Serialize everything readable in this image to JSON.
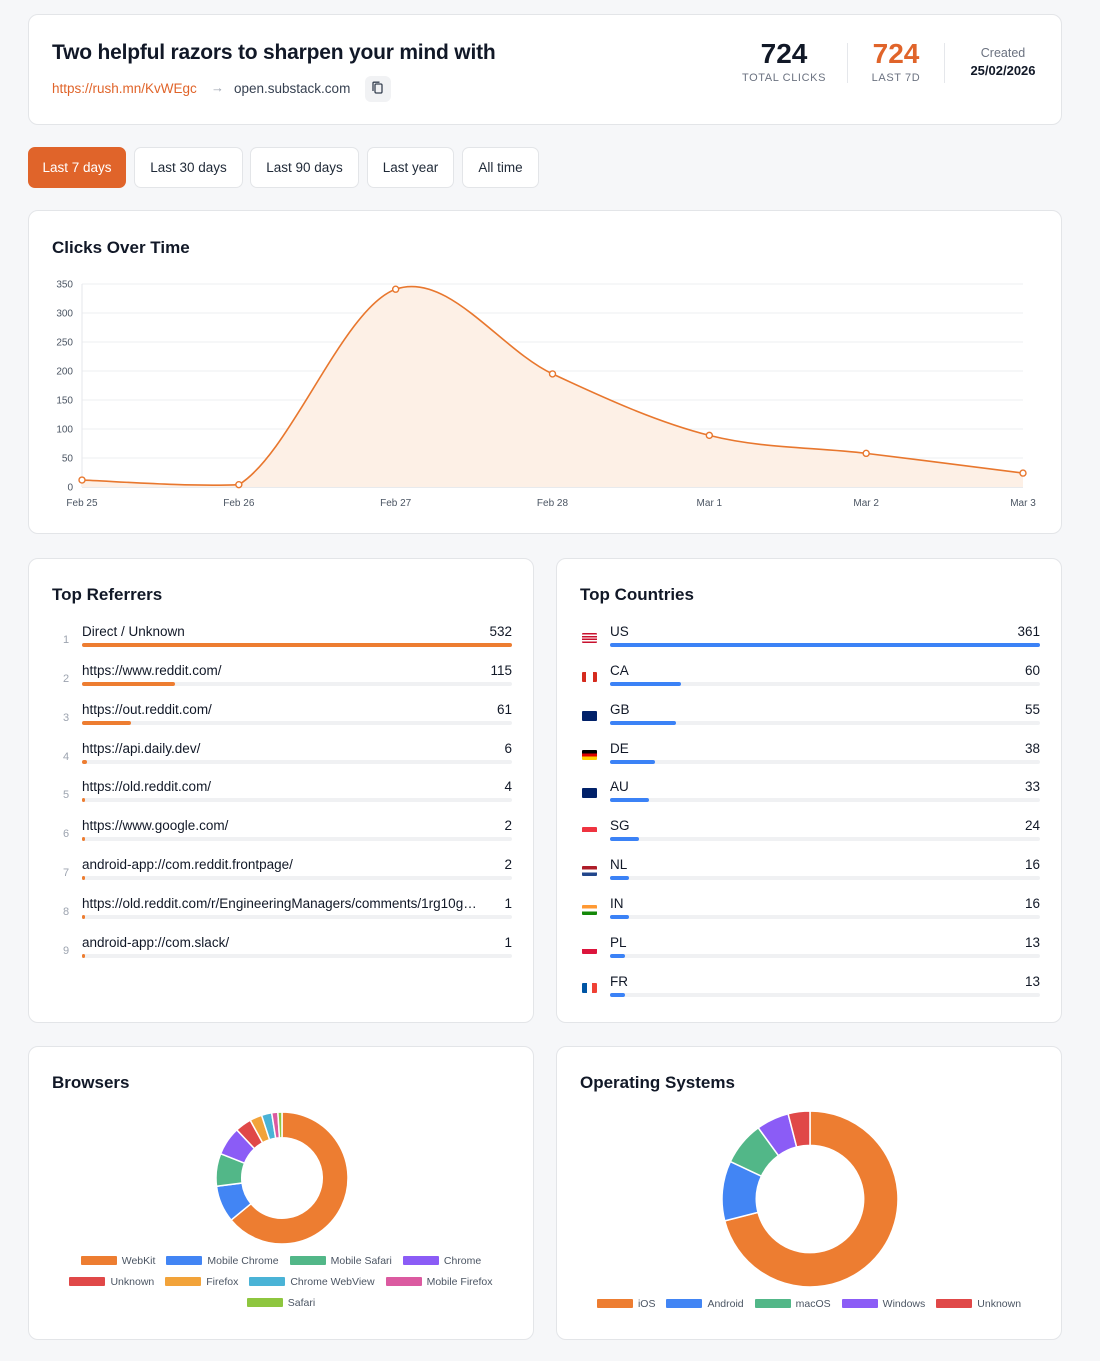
{
  "header": {
    "title": "Two helpful razors to sharpen your mind with",
    "short_url": "https://rush.mn/KvWEgc",
    "destination": "open.substack.com",
    "total_clicks": "724",
    "total_clicks_label": "TOTAL CLICKS",
    "last7d": "724",
    "last7d_label": "LAST 7D",
    "created_label": "Created",
    "created_date": "25/02/2026"
  },
  "ranges": [
    {
      "label": "Last 7 days",
      "active": true
    },
    {
      "label": "Last 30 days",
      "active": false
    },
    {
      "label": "Last 90 days",
      "active": false
    },
    {
      "label": "Last year",
      "active": false
    },
    {
      "label": "All time",
      "active": false
    }
  ],
  "colors": {
    "accent": "#e0642a",
    "line": "#e8772e",
    "area": "#fdf0e6",
    "bar_ref": "#ed7d31",
    "bar_country": "#3b82f6"
  },
  "chart_data": {
    "type": "area",
    "title": "Clicks Over Time",
    "categories": [
      "Feb 25",
      "Feb 26",
      "Feb 27",
      "Feb 28",
      "Mar 1",
      "Mar 2",
      "Mar 3"
    ],
    "values": [
      12,
      4,
      341,
      195,
      89,
      58,
      24
    ],
    "ylim": [
      0,
      350
    ],
    "yticks": [
      0,
      50,
      100,
      150,
      200,
      250,
      300,
      350
    ],
    "grid": true
  },
  "referrers": {
    "title": "Top Referrers",
    "items": [
      {
        "rank": "1",
        "name": "Direct / Unknown",
        "count": 532
      },
      {
        "rank": "2",
        "name": "https://www.reddit.com/",
        "count": 115
      },
      {
        "rank": "3",
        "name": "https://out.reddit.com/",
        "count": 61
      },
      {
        "rank": "4",
        "name": "https://api.daily.dev/",
        "count": 6
      },
      {
        "rank": "5",
        "name": "https://old.reddit.com/",
        "count": 4
      },
      {
        "rank": "6",
        "name": "https://www.google.com/",
        "count": 2
      },
      {
        "rank": "7",
        "name": "android-app://com.reddit.frontpage/",
        "count": 2
      },
      {
        "rank": "8",
        "name": "https://old.reddit.com/r/EngineeringManagers/comments/1rg10g2/o...",
        "count": 1
      },
      {
        "rank": "9",
        "name": "android-app://com.slack/",
        "count": 1
      }
    ]
  },
  "countries": {
    "title": "Top Countries",
    "items": [
      {
        "code": "US",
        "count": 361,
        "flag": "us-flag-icon"
      },
      {
        "code": "CA",
        "count": 60,
        "flag": "ca-flag-icon"
      },
      {
        "code": "GB",
        "count": 55,
        "flag": "gb-flag-icon"
      },
      {
        "code": "DE",
        "count": 38,
        "flag": "de-flag-icon"
      },
      {
        "code": "AU",
        "count": 33,
        "flag": "au-flag-icon"
      },
      {
        "code": "SG",
        "count": 24,
        "flag": "sg-flag-icon"
      },
      {
        "code": "NL",
        "count": 16,
        "flag": "nl-flag-icon"
      },
      {
        "code": "IN",
        "count": 16,
        "flag": "in-flag-icon"
      },
      {
        "code": "PL",
        "count": 13,
        "flag": "pl-flag-icon"
      },
      {
        "code": "FR",
        "count": 13,
        "flag": "fr-flag-icon"
      }
    ]
  },
  "browsers": {
    "title": "Browsers",
    "slices": [
      {
        "label": "WebKit",
        "value": 64,
        "color": "#ed7d31"
      },
      {
        "label": "Mobile Chrome",
        "value": 9,
        "color": "#4285f4"
      },
      {
        "label": "Mobile Safari",
        "value": 8,
        "color": "#52b788"
      },
      {
        "label": "Chrome",
        "value": 7,
        "color": "#8b5cf6"
      },
      {
        "label": "Unknown",
        "value": 4,
        "color": "#e04848"
      },
      {
        "label": "Firefox",
        "value": 3,
        "color": "#f2a33a"
      },
      {
        "label": "Chrome WebView",
        "value": 2.5,
        "color": "#4ab3d6"
      },
      {
        "label": "Mobile Firefox",
        "value": 1.5,
        "color": "#db5aa0"
      },
      {
        "label": "Safari",
        "value": 1,
        "color": "#8ec63f"
      }
    ]
  },
  "os": {
    "title": "Operating Systems",
    "slices": [
      {
        "label": "iOS",
        "value": 71,
        "color": "#ed7d31"
      },
      {
        "label": "Android",
        "value": 11,
        "color": "#4285f4"
      },
      {
        "label": "macOS",
        "value": 8,
        "color": "#52b788"
      },
      {
        "label": "Windows",
        "value": 6,
        "color": "#8b5cf6"
      },
      {
        "label": "Unknown",
        "value": 4,
        "color": "#e04848"
      }
    ]
  }
}
